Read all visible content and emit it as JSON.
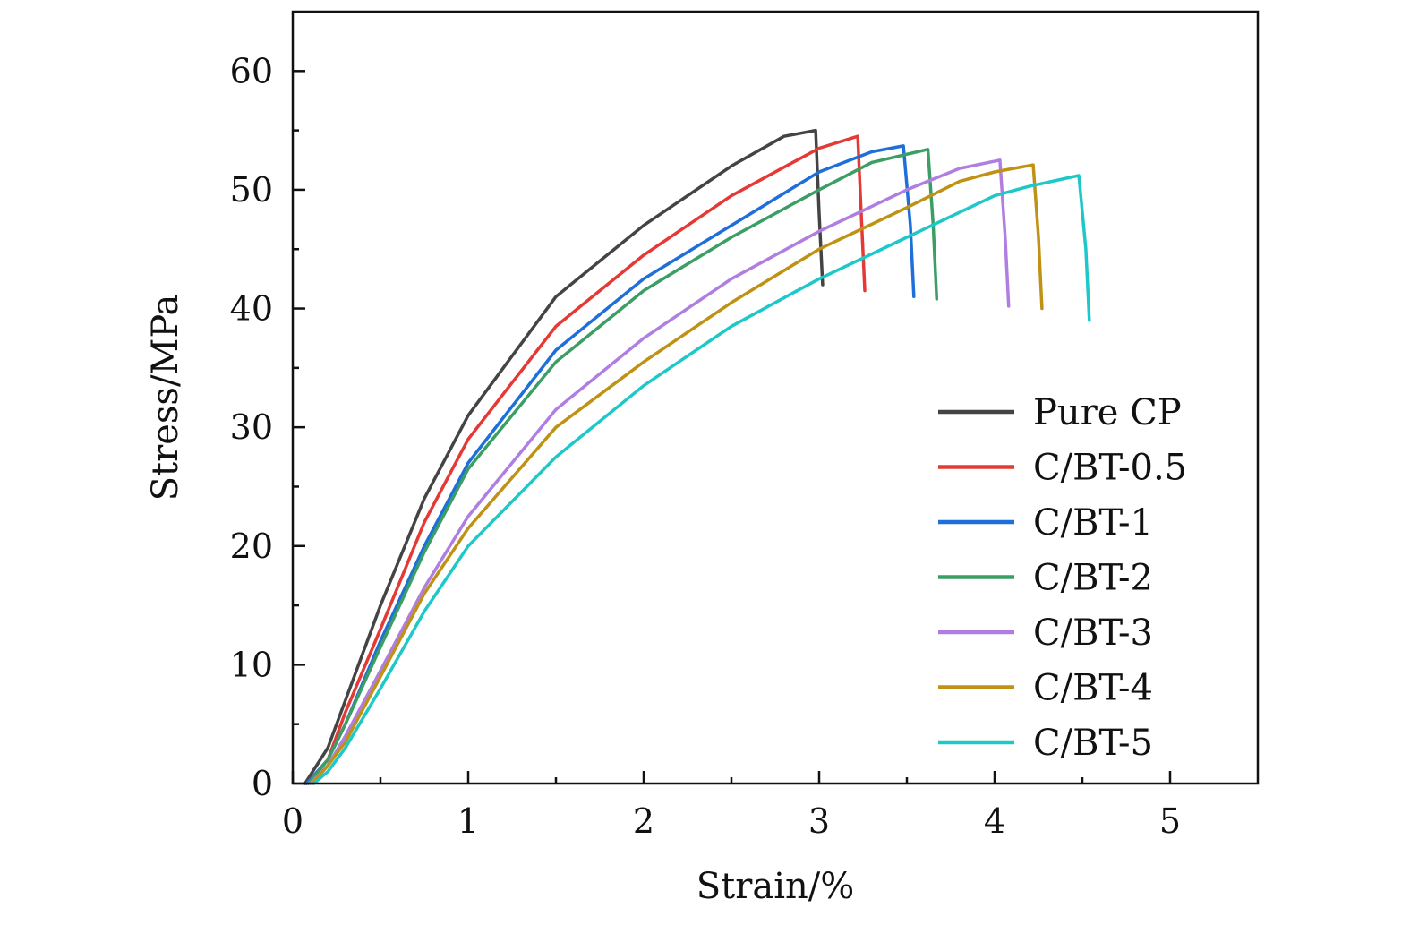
{
  "chart_data": {
    "type": "line",
    "title": "",
    "xlabel": "Strain/%",
    "ylabel": "Stress/MPa",
    "xlim": [
      0,
      5.5
    ],
    "ylim": [
      0,
      65
    ],
    "xticks": [
      0,
      1,
      2,
      3,
      4,
      5
    ],
    "yticks": [
      0,
      10,
      20,
      30,
      40,
      50,
      60
    ],
    "xtick_labels": [
      "0",
      "1",
      "2",
      "3",
      "4",
      "5"
    ],
    "ytick_labels": [
      "0",
      "10",
      "20",
      "30",
      "40",
      "50",
      "60"
    ],
    "grid": false,
    "legend_position": "bottom-right",
    "series": [
      {
        "name": "Pure CP",
        "color": "#444444",
        "x": [
          0.07,
          0.2,
          0.3,
          0.5,
          0.75,
          1.0,
          1.5,
          2.0,
          2.5,
          2.8,
          2.98,
          3.0,
          3.02
        ],
        "y": [
          0,
          3,
          7,
          15,
          24,
          31,
          41,
          47,
          52,
          54.5,
          55,
          48,
          42
        ]
      },
      {
        "name": "C/BT-0.5",
        "color": "#e53935",
        "x": [
          0.08,
          0.2,
          0.3,
          0.5,
          0.75,
          1.0,
          1.5,
          2.0,
          2.5,
          3.0,
          3.22,
          3.24,
          3.26
        ],
        "y": [
          0,
          2,
          6,
          13,
          22,
          29,
          38.5,
          44.5,
          49.5,
          53.5,
          54.5,
          48,
          41.5
        ]
      },
      {
        "name": "C/BT-1",
        "color": "#1e6fd9",
        "x": [
          0.08,
          0.2,
          0.3,
          0.5,
          0.75,
          1.0,
          1.5,
          2.0,
          2.5,
          3.0,
          3.3,
          3.48,
          3.52,
          3.54
        ],
        "y": [
          0,
          2,
          5,
          12,
          20,
          27,
          36.5,
          42.5,
          47,
          51.5,
          53.2,
          53.7,
          47,
          41
        ]
      },
      {
        "name": "C/BT-2",
        "color": "#3b9e64",
        "x": [
          0.09,
          0.2,
          0.3,
          0.5,
          0.75,
          1.0,
          1.5,
          2.0,
          2.5,
          3.0,
          3.3,
          3.62,
          3.65,
          3.67
        ],
        "y": [
          0,
          2,
          5,
          11.5,
          19.5,
          26.5,
          35.5,
          41.5,
          46,
          50,
          52.3,
          53.4,
          47,
          40.8
        ]
      },
      {
        "name": "C/BT-3",
        "color": "#b07ee0",
        "x": [
          0.1,
          0.2,
          0.3,
          0.5,
          0.75,
          1.0,
          1.5,
          2.0,
          2.5,
          3.0,
          3.5,
          3.8,
          4.03,
          4.06,
          4.08
        ],
        "y": [
          0,
          1.5,
          4,
          9.5,
          16.5,
          22.5,
          31.5,
          37.5,
          42.5,
          46.5,
          50,
          51.8,
          52.5,
          46,
          40.2
        ]
      },
      {
        "name": "C/BT-4",
        "color": "#bf9215",
        "x": [
          0.11,
          0.2,
          0.3,
          0.5,
          0.75,
          1.0,
          1.5,
          2.0,
          2.5,
          3.0,
          3.5,
          3.8,
          4.0,
          4.22,
          4.25,
          4.27
        ],
        "y": [
          0,
          1.5,
          3.5,
          9,
          16,
          21.5,
          30,
          35.5,
          40.5,
          45,
          48.5,
          50.7,
          51.5,
          52.1,
          46,
          40
        ]
      },
      {
        "name": "C/BT-5",
        "color": "#1ec8c8",
        "x": [
          0.12,
          0.2,
          0.3,
          0.5,
          0.75,
          1.0,
          1.5,
          2.0,
          2.5,
          3.0,
          3.5,
          4.0,
          4.2,
          4.48,
          4.52,
          4.54
        ],
        "y": [
          0,
          1,
          3,
          8,
          14.5,
          20,
          27.5,
          33.5,
          38.5,
          42.5,
          46,
          49.5,
          50.3,
          51.2,
          45,
          39
        ]
      }
    ]
  }
}
